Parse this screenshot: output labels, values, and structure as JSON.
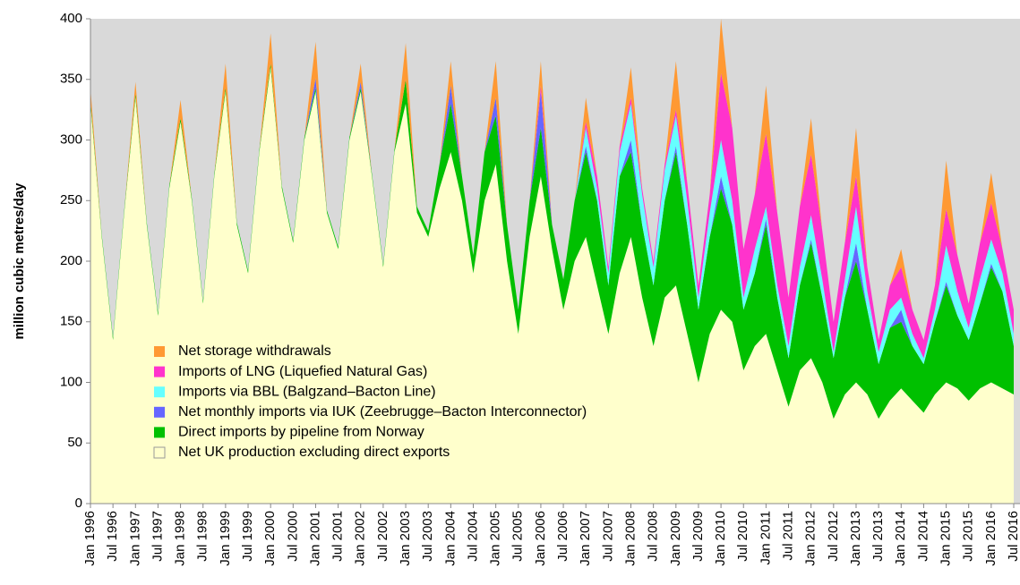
{
  "chart_data": {
    "type": "stacked_area",
    "y_label": "million cubic metres/day",
    "xlim": [
      1996,
      2016.5
    ],
    "ylim": [
      0,
      400
    ],
    "yticks": [
      0,
      50,
      100,
      150,
      200,
      250,
      300,
      350,
      400
    ],
    "xticks": [
      {
        "value": 1996,
        "label": "Jan 1996"
      },
      {
        "value": 1996.5,
        "label": "Jul 1996"
      },
      {
        "value": 1997,
        "label": "Jan 1997"
      },
      {
        "value": 1997.5,
        "label": "Jul 1997"
      },
      {
        "value": 1998,
        "label": "Jan 1998"
      },
      {
        "value": 1998.5,
        "label": "Jul 1998"
      },
      {
        "value": 1999,
        "label": "Jan 1999"
      },
      {
        "value": 1999.5,
        "label": "Jul 1999"
      },
      {
        "value": 2000,
        "label": "Jan 2000"
      },
      {
        "value": 2000.5,
        "label": "Jul 2000"
      },
      {
        "value": 2001,
        "label": "Jan 2001"
      },
      {
        "value": 2001.5,
        "label": "Jul 2001"
      },
      {
        "value": 2002,
        "label": "Jan 2002"
      },
      {
        "value": 2002.5,
        "label": "Jul 2002"
      },
      {
        "value": 2003,
        "label": "Jan 2003"
      },
      {
        "value": 2003.5,
        "label": "Jul 2003"
      },
      {
        "value": 2004,
        "label": "Jan 2004"
      },
      {
        "value": 2004.5,
        "label": "Jul 2004"
      },
      {
        "value": 2005,
        "label": "Jan 2005"
      },
      {
        "value": 2005.5,
        "label": "Jul 2005"
      },
      {
        "value": 2006,
        "label": "Jan 2006"
      },
      {
        "value": 2006.5,
        "label": "Jul 2006"
      },
      {
        "value": 2007,
        "label": "Jan 2007"
      },
      {
        "value": 2007.5,
        "label": "Jul 2007"
      },
      {
        "value": 2008,
        "label": "Jan 2008"
      },
      {
        "value": 2008.5,
        "label": "Jul 2008"
      },
      {
        "value": 2009,
        "label": "Jan 2009"
      },
      {
        "value": 2009.5,
        "label": "Jul 2009"
      },
      {
        "value": 2010,
        "label": "Jan 2010"
      },
      {
        "value": 2010.5,
        "label": "Jul 2010"
      },
      {
        "value": 2011,
        "label": "Jan 2011"
      },
      {
        "value": 2011.5,
        "label": "Jul 2011"
      },
      {
        "value": 2012,
        "label": "Jan 2012"
      },
      {
        "value": 2012.5,
        "label": "Jul 2012"
      },
      {
        "value": 2013,
        "label": "Jan 2013"
      },
      {
        "value": 2013.5,
        "label": "Jul 2013"
      },
      {
        "value": 2014,
        "label": "Jan 2014"
      },
      {
        "value": 2014.5,
        "label": "Jul 2014"
      },
      {
        "value": 2015,
        "label": "Jan 2015"
      },
      {
        "value": 2015.5,
        "label": "Jul 2015"
      },
      {
        "value": 2016,
        "label": "Jan 2016"
      },
      {
        "value": 2016.5,
        "label": "Jul 2016"
      }
    ],
    "x": [
      1996,
      1996.25,
      1996.5,
      1996.75,
      1997,
      1997.25,
      1997.5,
      1997.75,
      1998,
      1998.25,
      1998.5,
      1998.75,
      1999,
      1999.25,
      1999.5,
      1999.75,
      2000,
      2000.25,
      2000.5,
      2000.75,
      2001,
      2001.25,
      2001.5,
      2001.75,
      2002,
      2002.25,
      2002.5,
      2002.75,
      2003,
      2003.25,
      2003.5,
      2003.75,
      2004,
      2004.25,
      2004.5,
      2004.75,
      2005,
      2005.25,
      2005.5,
      2005.75,
      2006,
      2006.25,
      2006.5,
      2006.75,
      2007,
      2007.25,
      2007.5,
      2007.75,
      2008,
      2008.25,
      2008.5,
      2008.75,
      2009,
      2009.25,
      2009.5,
      2009.75,
      2010,
      2010.25,
      2010.5,
      2010.75,
      2011,
      2011.25,
      2011.5,
      2011.75,
      2012,
      2012.25,
      2012.5,
      2012.75,
      2013,
      2013.25,
      2013.5,
      2013.75,
      2014,
      2014.25,
      2014.5,
      2014.75,
      2015,
      2015.25,
      2015.5,
      2015.75,
      2016,
      2016.25,
      2016.5
    ],
    "series": [
      {
        "name": "Net UK production excluding direct exports",
        "color": "#ffffcc",
        "values": [
          330,
          220,
          135,
          240,
          335,
          230,
          155,
          260,
          315,
          250,
          165,
          270,
          340,
          230,
          190,
          290,
          360,
          260,
          215,
          300,
          340,
          240,
          210,
          300,
          340,
          270,
          195,
          290,
          330,
          240,
          220,
          260,
          290,
          250,
          190,
          250,
          280,
          200,
          140,
          220,
          270,
          210,
          160,
          200,
          220,
          180,
          140,
          190,
          220,
          170,
          130,
          170,
          180,
          140,
          100,
          140,
          160,
          150,
          110,
          130,
          140,
          110,
          80,
          110,
          120,
          100,
          70,
          90,
          100,
          90,
          70,
          85,
          95,
          85,
          75,
          90,
          100,
          95,
          85,
          95,
          100,
          95,
          90
        ]
      },
      {
        "name": "Direct imports by pipeline from Norway",
        "color": "#00c000",
        "values": [
          3,
          2,
          2,
          2,
          3,
          2,
          2,
          2,
          3,
          2,
          2,
          2,
          3,
          2,
          2,
          2,
          3,
          2,
          2,
          2,
          3,
          2,
          2,
          2,
          3,
          2,
          2,
          2,
          20,
          5,
          5,
          20,
          40,
          20,
          15,
          40,
          40,
          30,
          20,
          30,
          40,
          20,
          25,
          50,
          70,
          70,
          40,
          80,
          70,
          60,
          50,
          80,
          110,
          90,
          60,
          80,
          100,
          80,
          50,
          60,
          90,
          60,
          40,
          70,
          95,
          70,
          50,
          80,
          100,
          70,
          45,
          60,
          55,
          45,
          40,
          60,
          80,
          60,
          50,
          70,
          95,
          80,
          40
        ]
      },
      {
        "name": "Net monthly imports via IUK (Zeebrugge–Bacton Interconnector)",
        "color": "#6666ff",
        "values": [
          0,
          0,
          0,
          0,
          0,
          0,
          0,
          0,
          0,
          0,
          0,
          0,
          0,
          0,
          0,
          0,
          0,
          0,
          0,
          0,
          8,
          0,
          0,
          0,
          5,
          0,
          0,
          0,
          0,
          0,
          0,
          0,
          15,
          0,
          0,
          0,
          15,
          0,
          0,
          0,
          30,
          0,
          0,
          0,
          5,
          0,
          0,
          0,
          10,
          0,
          0,
          0,
          5,
          0,
          0,
          0,
          10,
          0,
          0,
          0,
          5,
          0,
          0,
          0,
          3,
          0,
          0,
          0,
          15,
          0,
          0,
          0,
          10,
          0,
          0,
          0,
          3,
          0,
          0,
          0,
          3,
          0,
          0
        ]
      },
      {
        "name": "Imports via BBL (Balgzand–Bacton Line)",
        "color": "#66ffff",
        "values": [
          0,
          0,
          0,
          0,
          0,
          0,
          0,
          0,
          0,
          0,
          0,
          0,
          0,
          0,
          0,
          0,
          0,
          0,
          0,
          0,
          0,
          0,
          0,
          0,
          0,
          0,
          0,
          0,
          0,
          0,
          0,
          0,
          0,
          0,
          0,
          0,
          0,
          0,
          0,
          0,
          0,
          0,
          0,
          0,
          15,
          10,
          10,
          20,
          30,
          25,
          15,
          25,
          25,
          20,
          10,
          20,
          30,
          20,
          10,
          20,
          10,
          10,
          10,
          15,
          20,
          15,
          5,
          15,
          30,
          15,
          10,
          15,
          10,
          10,
          5,
          10,
          30,
          20,
          10,
          20,
          20,
          15,
          10
        ]
      },
      {
        "name": "Imports of LNG (Liquefied Natural Gas)",
        "color": "#ff33cc",
        "values": [
          0,
          0,
          0,
          0,
          0,
          0,
          0,
          0,
          0,
          0,
          0,
          0,
          0,
          0,
          0,
          0,
          0,
          0,
          0,
          0,
          0,
          0,
          0,
          0,
          0,
          0,
          0,
          0,
          0,
          0,
          0,
          0,
          0,
          0,
          0,
          0,
          0,
          0,
          0,
          0,
          5,
          0,
          0,
          0,
          5,
          10,
          5,
          5,
          5,
          5,
          5,
          5,
          5,
          15,
          10,
          15,
          55,
          60,
          40,
          45,
          60,
          60,
          40,
          50,
          50,
          40,
          25,
          30,
          25,
          20,
          10,
          20,
          25,
          20,
          15,
          20,
          30,
          30,
          20,
          30,
          30,
          20,
          20
        ]
      },
      {
        "name": "Net storage withdrawals",
        "color": "#ff9933",
        "values": [
          10,
          0,
          0,
          0,
          10,
          0,
          0,
          0,
          15,
          0,
          0,
          0,
          20,
          0,
          0,
          0,
          25,
          0,
          0,
          0,
          30,
          0,
          0,
          0,
          15,
          0,
          0,
          0,
          30,
          0,
          0,
          0,
          20,
          0,
          0,
          0,
          30,
          0,
          0,
          0,
          20,
          0,
          0,
          0,
          20,
          0,
          0,
          0,
          25,
          0,
          0,
          0,
          40,
          0,
          0,
          0,
          45,
          0,
          0,
          0,
          40,
          0,
          0,
          0,
          30,
          0,
          0,
          0,
          40,
          0,
          0,
          0,
          15,
          0,
          0,
          0,
          40,
          0,
          0,
          0,
          25,
          0,
          0
        ]
      }
    ]
  }
}
